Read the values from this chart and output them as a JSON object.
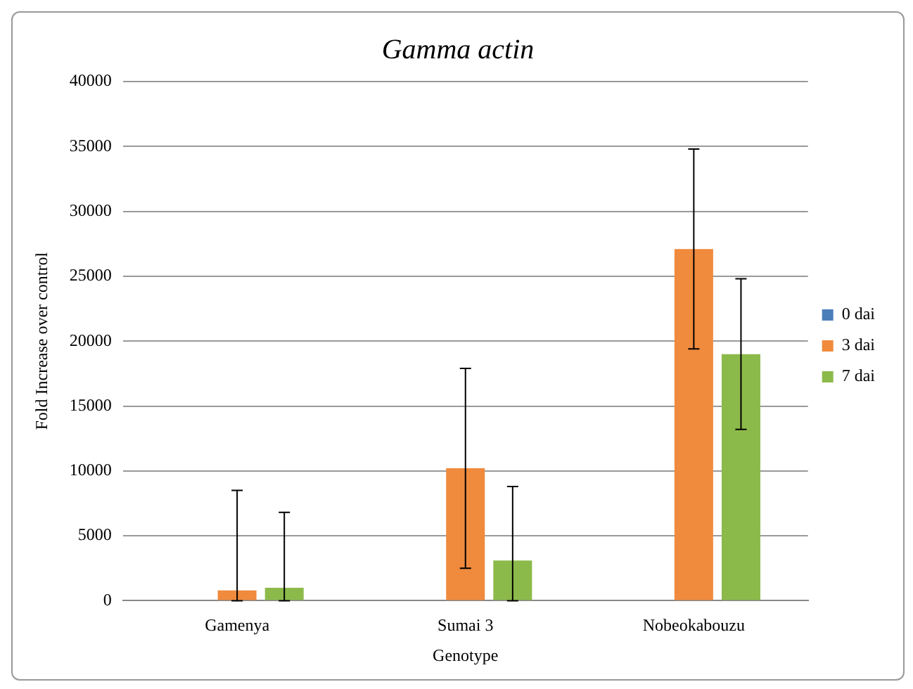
{
  "chart_data": {
    "type": "bar",
    "title": "Gamma actin",
    "xlabel": "Genotype",
    "ylabel": "Fold Increase over control",
    "categories": [
      "Gamenya",
      "Sumai 3",
      "Nobeokabouzu"
    ],
    "series": [
      {
        "name": "0 dai",
        "color": "#4a7ebb",
        "values": [
          0,
          0,
          0
        ]
      },
      {
        "name": "3 dai",
        "color": "#f08a3c",
        "values": [
          800,
          10200,
          27100
        ],
        "errors": [
          [
            0,
            8500
          ],
          7700,
          7700
        ]
      },
      {
        "name": "7 dai",
        "color": "#8cba4a",
        "values": [
          1000,
          3100,
          19000
        ],
        "errors": [
          [
            0,
            6800
          ],
          [
            0,
            8800
          ],
          5800
        ]
      }
    ],
    "ylim": [
      0,
      40000
    ],
    "yticks": [
      0,
      5000,
      10000,
      15000,
      20000,
      25000,
      30000,
      35000,
      40000
    ],
    "grid": "y",
    "legend": "right"
  }
}
